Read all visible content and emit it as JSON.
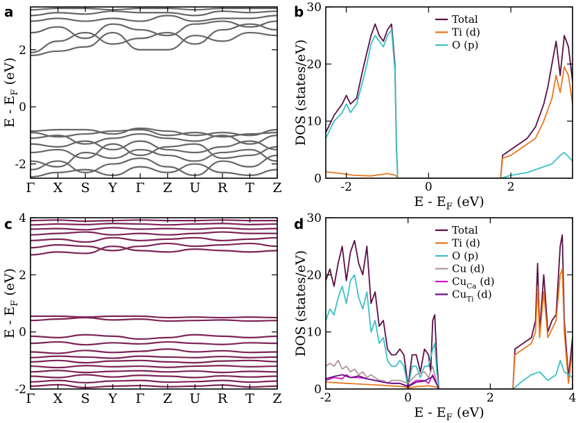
{
  "chart_data": [
    {
      "type": "line",
      "panel_label": "a",
      "kind": "band_structure",
      "ylabel_main": "E - E",
      "ylabel_sub": "F",
      "ylabel_unit": "(eV)",
      "k_labels": [
        "Γ",
        "X",
        "S",
        "Y",
        "Γ",
        "Z",
        "U",
        "R",
        "T",
        "Z"
      ],
      "ylim": [
        -2.5,
        3.5
      ],
      "yticks": [
        -2,
        0,
        2
      ],
      "band_color": "#666666",
      "bands": [
        [
          -2.45,
          -2.3,
          -2.2,
          -2.4,
          -2.1,
          -2.3,
          -2.0,
          -2.3,
          -2.4,
          -2.2
        ],
        [
          -2.2,
          -1.9,
          -2.3,
          -2.0,
          -1.8,
          -2.1,
          -2.4,
          -1.9,
          -2.1,
          -1.7
        ],
        [
          -1.9,
          -2.1,
          -1.6,
          -1.8,
          -1.5,
          -1.7,
          -1.9,
          -1.6,
          -1.5,
          -1.9
        ],
        [
          -1.6,
          -1.5,
          -1.8,
          -1.3,
          -1.7,
          -1.4,
          -1.3,
          -1.8,
          -1.7,
          -1.4
        ],
        [
          -1.3,
          -1.4,
          -1.2,
          -1.5,
          -1.2,
          -1.5,
          -1.6,
          -1.4,
          -1.2,
          -1.5
        ],
        [
          -1.1,
          -1.0,
          -1.3,
          -1.1,
          -0.95,
          -1.1,
          -1.2,
          -1.0,
          -1.3,
          -1.0
        ],
        [
          -0.9,
          -1.05,
          -0.95,
          -0.85,
          -0.8,
          -1.0,
          -0.9,
          -1.05,
          -0.95,
          -0.9
        ],
        [
          -0.85,
          -0.8,
          -0.8,
          -0.95,
          -0.75,
          -0.85,
          -1.0,
          -0.9,
          -1.0,
          -0.8
        ],
        [
          1.8,
          1.95,
          2.1,
          2.6,
          2.0,
          2.0,
          2.5,
          2.3,
          2.6,
          2.5
        ],
        [
          1.9,
          2.3,
          2.6,
          2.2,
          2.4,
          2.6,
          2.2,
          2.7,
          2.9,
          2.7
        ],
        [
          2.6,
          2.8,
          2.4,
          2.9,
          2.7,
          2.5,
          2.9,
          3.0,
          2.8,
          3.0
        ],
        [
          3.0,
          3.1,
          3.0,
          3.1,
          3.0,
          3.2,
          3.0,
          3.1,
          3.1,
          3.2
        ],
        [
          3.2,
          3.3,
          3.25,
          3.35,
          3.3,
          3.3,
          3.2,
          3.35,
          3.3,
          3.35
        ],
        [
          3.4,
          3.45,
          3.45,
          3.4,
          3.45,
          3.45,
          3.4,
          3.45,
          3.45,
          3.45
        ]
      ]
    },
    {
      "type": "line",
      "panel_label": "b",
      "kind": "dos",
      "xlabel_main": "E - E",
      "xlabel_sub": "F",
      "xlabel_unit": "(eV)",
      "ylabel": "DOS (states/eV)",
      "xlim": [
        -2.5,
        3.5
      ],
      "ylim": [
        0,
        30
      ],
      "xticks": [
        -2,
        0,
        2
      ],
      "yticks": [
        0,
        10,
        20,
        30
      ],
      "legend": "top-center",
      "series": [
        {
          "name": "Total",
          "color": "#5a0e46",
          "x": [
            -2.5,
            -2.3,
            -2.1,
            -2.0,
            -1.9,
            -1.75,
            -1.6,
            -1.5,
            -1.4,
            -1.3,
            -1.2,
            -1.1,
            -1.0,
            -0.9,
            -0.82,
            -0.78,
            -0.75,
            1.75,
            1.8,
            2.0,
            2.2,
            2.4,
            2.6,
            2.8,
            2.9,
            3.0,
            3.1,
            3.2,
            3.3,
            3.4,
            3.5
          ],
          "y": [
            8,
            11,
            13,
            14.5,
            13,
            14,
            19,
            22,
            25,
            27,
            25,
            24,
            26,
            27,
            20,
            5,
            0,
            0,
            4,
            5,
            6,
            7,
            9,
            13,
            16,
            20,
            24,
            18,
            25,
            23,
            17
          ]
        },
        {
          "name": "Ti (d)",
          "color": "#e8781e",
          "x": [
            -2.5,
            -2.2,
            -1.8,
            -1.4,
            -1.0,
            -0.8,
            -0.75,
            1.75,
            1.8,
            2.0,
            2.2,
            2.4,
            2.6,
            2.8,
            3.0,
            3.1,
            3.2,
            3.3,
            3.4,
            3.5
          ],
          "y": [
            1.1,
            0.9,
            0.5,
            0.4,
            0.8,
            0.5,
            0,
            0,
            3.5,
            4,
            5,
            6,
            7,
            10,
            14,
            18,
            15,
            19.5,
            18,
            13
          ]
        },
        {
          "name": "O (p)",
          "color": "#3bbfc7",
          "x": [
            -2.5,
            -2.3,
            -2.1,
            -2.0,
            -1.9,
            -1.75,
            -1.6,
            -1.5,
            -1.4,
            -1.3,
            -1.2,
            -1.1,
            -1.0,
            -0.9,
            -0.82,
            -0.78,
            -0.75,
            1.75,
            2.0,
            2.4,
            2.8,
            3.0,
            3.2,
            3.3,
            3.5
          ],
          "y": [
            7,
            10,
            11.5,
            13,
            11.5,
            13,
            17,
            20,
            23.5,
            25,
            24,
            23,
            25,
            26,
            19,
            4.5,
            0,
            0,
            0.5,
            1,
            2,
            2.5,
            4,
            4.5,
            3
          ]
        }
      ]
    },
    {
      "type": "line",
      "panel_label": "c",
      "kind": "band_structure",
      "ylabel_main": "E - E",
      "ylabel_sub": "F",
      "ylabel_unit": "(eV)",
      "k_labels": [
        "Γ",
        "X",
        "S",
        "Y",
        "Γ",
        "Z",
        "U",
        "R",
        "T",
        "Z"
      ],
      "ylim": [
        -2,
        4
      ],
      "yticks": [
        -2,
        0,
        2,
        4
      ],
      "band_color": "#7c2457",
      "bands": [
        [
          -1.9,
          -1.85,
          -1.95,
          -1.9,
          -1.88,
          -1.92,
          -1.9,
          -1.86,
          -1.93,
          -1.9
        ],
        [
          -1.75,
          -1.7,
          -1.78,
          -1.72,
          -1.7,
          -1.76,
          -1.74,
          -1.7,
          -1.76,
          -1.72
        ],
        [
          -1.55,
          -1.6,
          -1.5,
          -1.58,
          -1.52,
          -1.55,
          -1.6,
          -1.54,
          -1.58,
          -1.55
        ],
        [
          -1.4,
          -1.35,
          -1.42,
          -1.38,
          -1.36,
          -1.4,
          -1.37,
          -1.42,
          -1.38,
          -1.4
        ],
        [
          -1.2,
          -1.25,
          -1.18,
          -1.22,
          -1.2,
          -1.24,
          -1.2,
          -1.18,
          -1.22,
          -1.2
        ],
        [
          -1.05,
          -1.0,
          -1.08,
          -1.02,
          -1.0,
          -1.05,
          -1.08,
          -1.02,
          -1.0,
          -1.04
        ],
        [
          -0.9,
          -0.85,
          -0.88,
          -0.92,
          -0.85,
          -0.88,
          -0.9,
          -0.86,
          -0.9,
          -0.88
        ],
        [
          -0.7,
          -0.75,
          -0.65,
          -0.72,
          -0.68,
          -0.6,
          -0.7,
          -0.66,
          -0.72,
          -0.7
        ],
        [
          -0.4,
          -0.35,
          -0.45,
          -0.38,
          -0.42,
          -0.35,
          -0.4,
          -0.44,
          -0.38,
          -0.4
        ],
        [
          -0.15,
          -0.2,
          -0.1,
          -0.15,
          -0.25,
          -0.2,
          -0.1,
          -0.15,
          -0.2,
          -0.15
        ],
        [
          0.4,
          0.45,
          0.5,
          0.42,
          0.45,
          0.38,
          0.4,
          0.42,
          0.38,
          0.4
        ],
        [
          0.55,
          0.55,
          0.52,
          0.55,
          0.55,
          0.5,
          0.52,
          0.5,
          0.52,
          0.5
        ],
        [
          2.7,
          2.8,
          2.75,
          3.0,
          2.85,
          2.8,
          2.9,
          2.85,
          2.8,
          2.85
        ],
        [
          2.95,
          3.05,
          3.0,
          2.85,
          3.0,
          3.1,
          3.0,
          3.05,
          3.1,
          3.0
        ],
        [
          3.2,
          3.25,
          3.15,
          3.3,
          3.2,
          3.25,
          3.3,
          3.2,
          3.25,
          3.3
        ],
        [
          3.4,
          3.45,
          3.5,
          3.4,
          3.45,
          3.4,
          3.45,
          3.5,
          3.45,
          3.45
        ],
        [
          3.6,
          3.62,
          3.58,
          3.65,
          3.6,
          3.62,
          3.6,
          3.64,
          3.6,
          3.62
        ],
        [
          3.75,
          3.78,
          3.76,
          3.8,
          3.78,
          3.75,
          3.78,
          3.8,
          3.76,
          3.78
        ],
        [
          3.9,
          3.92,
          3.88,
          3.9,
          3.92,
          3.9,
          3.9,
          3.92,
          3.9,
          3.9
        ]
      ]
    },
    {
      "type": "line",
      "panel_label": "d",
      "kind": "dos",
      "xlabel_main": "E - E",
      "xlabel_sub": "F",
      "xlabel_unit": "(eV)",
      "ylabel": "DOS (states/eV)",
      "xlim": [
        -2,
        4
      ],
      "ylim": [
        0,
        30
      ],
      "xticks": [
        -2,
        0,
        2,
        4
      ],
      "yticks": [
        0,
        10,
        20,
        30
      ],
      "legend": "top-center",
      "series": [
        {
          "name": "Total",
          "name_main": "Total",
          "name_sub": "",
          "name_tail": "",
          "color": "#5a0e46",
          "x": [
            -2.0,
            -1.9,
            -1.8,
            -1.7,
            -1.6,
            -1.5,
            -1.4,
            -1.3,
            -1.2,
            -1.1,
            -1.0,
            -0.9,
            -0.8,
            -0.7,
            -0.6,
            -0.5,
            -0.4,
            -0.3,
            -0.2,
            -0.1,
            0.0,
            0.1,
            0.2,
            0.3,
            0.4,
            0.5,
            0.55,
            0.6,
            0.65,
            0.7,
            0.75,
            2.55,
            2.6,
            2.8,
            3.0,
            3.1,
            3.15,
            3.2,
            3.3,
            3.4,
            3.5,
            3.6,
            3.7,
            3.75,
            3.8,
            3.9,
            4.0
          ],
          "y": [
            19,
            21,
            18,
            22,
            25,
            19,
            24,
            26,
            22,
            20,
            25,
            15,
            17,
            11,
            12,
            7,
            6,
            6,
            7,
            6,
            0.5,
            6,
            6,
            3,
            7,
            6,
            3,
            12,
            13,
            5,
            0,
            0,
            7,
            8,
            9,
            12,
            22,
            10,
            20,
            10,
            12,
            13,
            25,
            27,
            12,
            2,
            9
          ]
        },
        {
          "name": "Ti (d)",
          "name_main": "Ti (d)",
          "name_sub": "",
          "name_tail": "",
          "color": "#e8781e",
          "x": [
            -2.0,
            -1.5,
            -1.0,
            -0.5,
            -0.1,
            0.0,
            0.2,
            0.5,
            0.7,
            0.75,
            2.55,
            2.6,
            2.8,
            3.0,
            3.1,
            3.15,
            3.2,
            3.3,
            3.4,
            3.6,
            3.7,
            3.75,
            3.8,
            3.9,
            4.0
          ],
          "y": [
            1.2,
            1.0,
            0.8,
            0.6,
            0.4,
            0.2,
            0.4,
            0.6,
            0.3,
            0,
            0,
            6,
            7,
            8,
            10,
            18,
            9,
            17,
            9,
            12,
            20,
            21,
            10,
            1,
            7
          ]
        },
        {
          "name": "O (p)",
          "name_main": "O (p)",
          "name_sub": "",
          "name_tail": "",
          "color": "#3bbfc7",
          "x": [
            -2.0,
            -1.9,
            -1.8,
            -1.7,
            -1.6,
            -1.5,
            -1.4,
            -1.3,
            -1.2,
            -1.1,
            -1.0,
            -0.9,
            -0.8,
            -0.7,
            -0.6,
            -0.5,
            -0.4,
            -0.3,
            -0.2,
            -0.1,
            0.0,
            0.1,
            0.2,
            0.3,
            0.4,
            0.5,
            0.6,
            0.65,
            0.7,
            0.75,
            2.55,
            2.8,
            3.0,
            3.2,
            3.4,
            3.6,
            3.7,
            3.8,
            4.0
          ],
          "y": [
            12,
            14,
            13,
            16,
            18,
            15,
            19,
            20,
            16,
            14,
            17,
            10,
            12,
            8,
            9,
            5,
            4,
            4,
            5,
            4,
            0.3,
            4,
            4,
            2,
            4,
            4,
            7,
            8,
            3,
            0,
            0,
            1.5,
            2.5,
            3,
            1.5,
            2.5,
            5,
            3,
            2
          ]
        },
        {
          "name": "Cu (d)",
          "name_main": "Cu (d)",
          "name_sub": "",
          "name_tail": "",
          "color": "#b09696",
          "x": [
            -2.0,
            -1.9,
            -1.8,
            -1.7,
            -1.6,
            -1.5,
            -1.4,
            -1.3,
            -1.2,
            -1.1,
            -1.0,
            -0.9,
            -0.8,
            -0.7,
            -0.6,
            -0.5,
            -0.4,
            -0.2,
            0.0,
            0.2,
            0.4,
            0.5,
            0.6,
            0.7,
            0.75
          ],
          "y": [
            4,
            4.5,
            4,
            5,
            3.5,
            4,
            3,
            3.5,
            2.5,
            3,
            2,
            2.5,
            2,
            1.5,
            1.5,
            1,
            1.5,
            1.5,
            1,
            2.5,
            3,
            2,
            4,
            1,
            0
          ]
        },
        {
          "name": "CuCa (d)",
          "name_main": "Cu",
          "name_sub": "Ca",
          "name_tail": " (d)",
          "color": "#cc18cc",
          "x": [
            -2.0,
            -1.8,
            -1.6,
            -1.5,
            -1.4,
            -1.2,
            -1.0,
            -0.8,
            -0.6,
            -0.4,
            -0.2,
            0.0,
            0.2,
            0.4,
            0.5,
            0.6,
            0.7,
            0.75
          ],
          "y": [
            1.5,
            2,
            1.8,
            2.5,
            2,
            2,
            1.8,
            1.5,
            1.2,
            1,
            1,
            0.5,
            1.5,
            1.5,
            1,
            2.5,
            0.8,
            0
          ]
        },
        {
          "name": "CuTi (d)",
          "name_main": "Cu",
          "name_sub": "Ti",
          "name_tail": " (d)",
          "color": "#6a1080",
          "x": [
            -2.0,
            -1.8,
            -1.6,
            -1.4,
            -1.2,
            -1.0,
            -0.8,
            -0.6,
            -0.4,
            -0.2,
            0.0,
            0.2,
            0.4,
            0.6,
            0.7,
            0.75
          ],
          "y": [
            1.8,
            2.2,
            2.5,
            2,
            2.3,
            1.8,
            1.5,
            1.2,
            1,
            1,
            0.4,
            1.2,
            1.4,
            2.2,
            0.8,
            0
          ]
        }
      ]
    }
  ]
}
